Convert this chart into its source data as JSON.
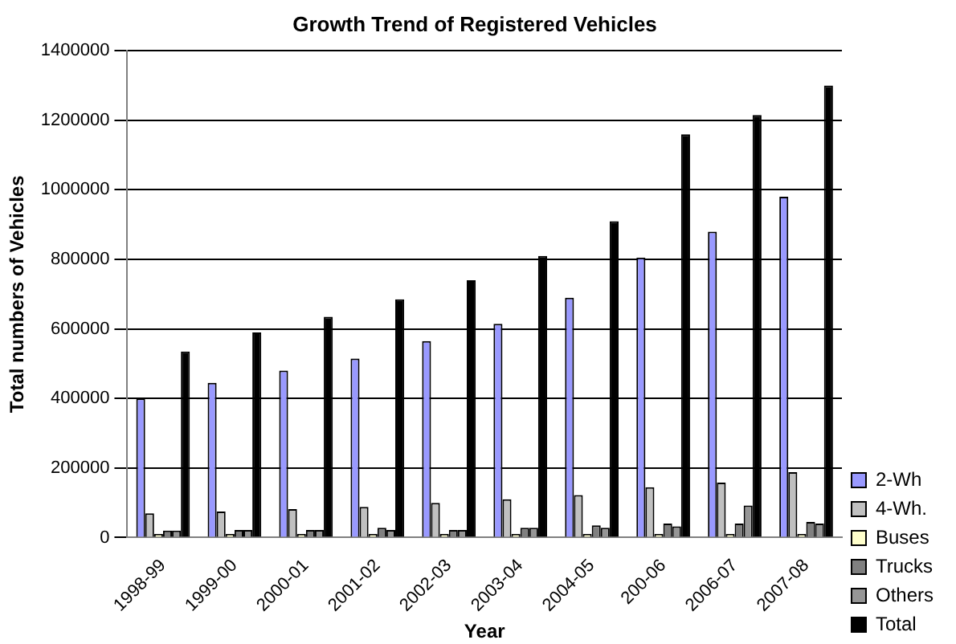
{
  "chart_data": {
    "type": "bar",
    "title": "Growth Trend of Registered Vehicles",
    "xlabel": "Year",
    "ylabel": "Total numbers of Vehicles",
    "categories": [
      "1998-99",
      "1999-00",
      "2000-01",
      "2001-02",
      "2002-03",
      "2003-04",
      "2004-05",
      "200-06",
      "2006-07",
      "2007-08"
    ],
    "series": [
      {
        "name": "2-Wh",
        "color": "#9999ff",
        "values": [
          400000,
          445000,
          480000,
          515000,
          565000,
          615000,
          690000,
          805000,
          880000,
          980000
        ]
      },
      {
        "name": "4-Wh.",
        "color": "#c0c0c0",
        "values": [
          70000,
          75000,
          82000,
          88000,
          100000,
          110000,
          122000,
          145000,
          158000,
          188000
        ]
      },
      {
        "name": "Buses",
        "color": "#ffffcc",
        "values": [
          10000,
          10000,
          10000,
          10000,
          10000,
          10000,
          10000,
          10000,
          10000,
          10000
        ]
      },
      {
        "name": "Trucks",
        "color": "#808080",
        "values": [
          20000,
          22000,
          22000,
          28000,
          22000,
          28000,
          35000,
          40000,
          40000,
          45000
        ]
      },
      {
        "name": "Others",
        "color": "#969696",
        "values": [
          20000,
          22000,
          22000,
          22000,
          22000,
          28000,
          28000,
          32000,
          92000,
          40000
        ]
      },
      {
        "name": "Total",
        "color": "#000000",
        "values": [
          535000,
          590000,
          635000,
          685000,
          740000,
          810000,
          910000,
          1160000,
          1215000,
          1300000
        ]
      }
    ],
    "ylim": [
      0,
      1400000
    ],
    "yticks": [
      0,
      200000,
      400000,
      600000,
      800000,
      1000000,
      1200000,
      1400000
    ],
    "grid": "y",
    "legend": "bottom right"
  }
}
